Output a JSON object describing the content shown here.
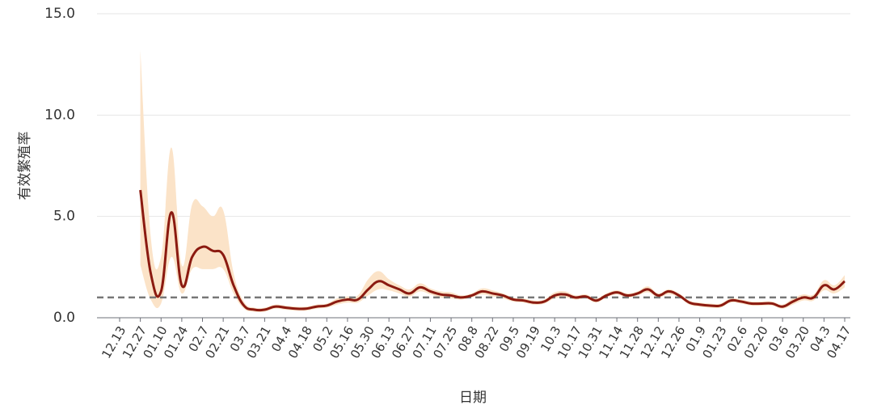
{
  "chart_data": {
    "type": "line",
    "y_label": "有效繁殖率",
    "x_label": "日期",
    "categories": [
      "12.13",
      null,
      "12.27",
      null,
      "01.10",
      null,
      "01.24",
      null,
      "02.7",
      null,
      "02.21",
      null,
      "03.7",
      null,
      "03.21",
      null,
      "04.4",
      null,
      "04.18",
      null,
      "05.2",
      null,
      "05.16",
      null,
      "05.30",
      null,
      "06.13",
      null,
      "06.27",
      null,
      "07.11",
      null,
      "07.25",
      null,
      "08.8",
      null,
      "08.22",
      null,
      "09.5",
      null,
      "09.19",
      null,
      "10.3",
      null,
      "10.17",
      null,
      "10.31",
      null,
      "11.14",
      null,
      "11.28",
      null,
      "12.12",
      null,
      "12.26",
      null,
      "01.9",
      null,
      "01.23",
      null,
      "02.6",
      null,
      "02.20",
      null,
      "03.6",
      null,
      "03.20",
      null,
      "04.3",
      null,
      "04.17"
    ],
    "values": [
      null,
      null,
      6.3,
      2.2,
      1.3,
      5.2,
      1.6,
      3.0,
      3.5,
      3.3,
      3.1,
      1.6,
      0.6,
      0.4,
      0.4,
      0.55,
      0.5,
      0.45,
      0.45,
      0.55,
      0.6,
      0.8,
      0.9,
      0.9,
      1.4,
      1.8,
      1.6,
      1.4,
      1.2,
      1.5,
      1.3,
      1.15,
      1.1,
      1.0,
      1.1,
      1.3,
      1.2,
      1.1,
      0.9,
      0.85,
      0.75,
      0.8,
      1.1,
      1.15,
      1.0,
      1.05,
      0.85,
      1.1,
      1.25,
      1.1,
      1.2,
      1.4,
      1.1,
      1.3,
      1.1,
      0.75,
      0.65,
      0.6,
      0.6,
      0.85,
      0.8,
      0.7,
      0.7,
      0.7,
      0.55,
      0.8,
      1.0,
      1.0,
      1.6,
      1.4,
      1.8
    ],
    "upper": [
      null,
      null,
      13.2,
      4.0,
      3.0,
      8.4,
      2.6,
      5.6,
      5.5,
      5.0,
      5.3,
      2.2,
      0.8,
      0.5,
      0.5,
      0.65,
      0.6,
      0.55,
      0.55,
      0.65,
      0.7,
      0.95,
      1.05,
      1.1,
      1.9,
      2.3,
      1.9,
      1.6,
      1.4,
      1.7,
      1.45,
      1.3,
      1.25,
      1.1,
      1.2,
      1.45,
      1.35,
      1.2,
      1.0,
      0.95,
      0.85,
      0.9,
      1.25,
      1.3,
      1.1,
      1.15,
      0.95,
      1.2,
      1.35,
      1.2,
      1.3,
      1.55,
      1.2,
      1.4,
      1.2,
      0.85,
      0.75,
      0.7,
      0.7,
      0.95,
      0.9,
      0.8,
      0.8,
      0.8,
      0.65,
      0.95,
      1.15,
      1.15,
      1.85,
      1.6,
      2.1
    ],
    "lower": [
      null,
      null,
      2.6,
      0.9,
      0.7,
      3.0,
      1.2,
      2.4,
      2.4,
      2.4,
      2.4,
      1.2,
      0.45,
      0.3,
      0.3,
      0.45,
      0.4,
      0.35,
      0.35,
      0.45,
      0.5,
      0.65,
      0.75,
      0.75,
      1.1,
      1.4,
      1.35,
      1.2,
      1.05,
      1.3,
      1.15,
      1.0,
      0.95,
      0.9,
      1.0,
      1.15,
      1.05,
      0.95,
      0.8,
      0.75,
      0.65,
      0.7,
      0.95,
      1.0,
      0.9,
      0.95,
      0.75,
      1.0,
      1.15,
      1.0,
      1.1,
      1.25,
      1.0,
      1.15,
      1.0,
      0.65,
      0.55,
      0.5,
      0.5,
      0.75,
      0.7,
      0.6,
      0.6,
      0.6,
      0.45,
      0.65,
      0.85,
      0.85,
      1.35,
      1.2,
      1.5
    ],
    "color": "#8b1a10",
    "band_color": "#fbe3c8",
    "reference_line": 1.0,
    "reference_color": "#777777",
    "ylim": [
      0,
      15
    ],
    "yticks": [
      {
        "value": 0,
        "label": "0.0"
      },
      {
        "value": 5,
        "label": "5.0"
      },
      {
        "value": 10,
        "label": "10.0"
      },
      {
        "value": 15,
        "label": "15.0"
      }
    ],
    "grid": true
  }
}
